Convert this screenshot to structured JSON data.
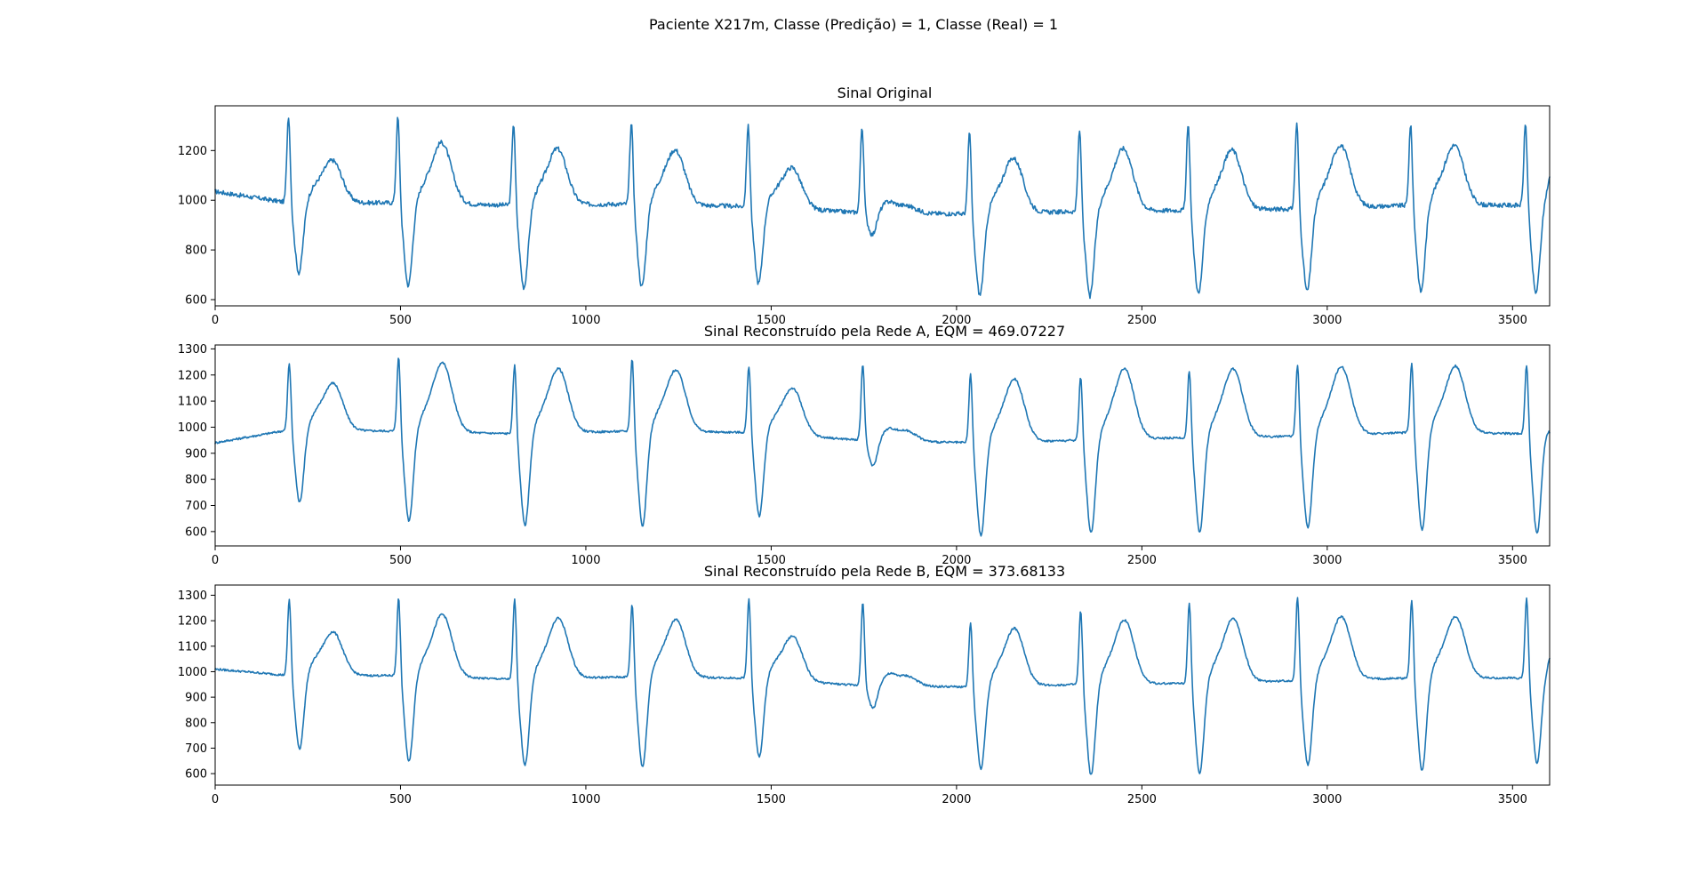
{
  "figure": {
    "suptitle": "Paciente X217m, Classe (Predição) = 1, Classe (Real) = 1"
  },
  "colors": {
    "line": "#1f77b4",
    "axes": "#000000",
    "background": "#ffffff"
  },
  "chart_data": [
    {
      "type": "line",
      "title": "Sinal Original",
      "xlabel": "",
      "ylabel": "",
      "xlim": [
        0,
        3600
      ],
      "ylim": [
        575,
        1380
      ],
      "xticks": [
        0,
        500,
        1000,
        1500,
        2000,
        2500,
        3000,
        3500
      ],
      "yticks": [
        600,
        800,
        1000,
        1200
      ],
      "grid": false,
      "series": [
        {
          "name": "",
          "beats": [
            {
              "r": 198,
              "r_peak": 1350,
              "s_min": 705,
              "t_peak": 1160,
              "baseline": 990
            },
            {
              "r": 493,
              "r_peak": 1345,
              "s_min": 655,
              "t_peak": 1235,
              "baseline": 990
            },
            {
              "r": 805,
              "r_peak": 1320,
              "s_min": 645,
              "t_peak": 1205,
              "baseline": 980
            },
            {
              "r": 1123,
              "r_peak": 1320,
              "s_min": 650,
              "t_peak": 1205,
              "baseline": 985
            },
            {
              "r": 1438,
              "r_peak": 1310,
              "s_min": 665,
              "t_peak": 1140,
              "baseline": 975
            },
            {
              "r": 1745,
              "r_peak": 1300,
              "s_min": 860,
              "t_peak": 980,
              "baseline": 950
            },
            {
              "r": 2035,
              "r_peak": 1285,
              "s_min": 615,
              "t_peak": 1165,
              "baseline": 945
            },
            {
              "r": 2332,
              "r_peak": 1295,
              "s_min": 610,
              "t_peak": 1205,
              "baseline": 955
            },
            {
              "r": 2625,
              "r_peak": 1315,
              "s_min": 620,
              "t_peak": 1200,
              "baseline": 960
            },
            {
              "r": 2918,
              "r_peak": 1320,
              "s_min": 630,
              "t_peak": 1215,
              "baseline": 965
            },
            {
              "r": 3225,
              "r_peak": 1315,
              "s_min": 630,
              "t_peak": 1220,
              "baseline": 980
            },
            {
              "r": 3535,
              "r_peak": 1320,
              "s_min": 625,
              "t_peak": 1050,
              "baseline": 980
            }
          ],
          "start_value": 1035,
          "end_value": 1045,
          "noise_amplitude": 9
        }
      ]
    },
    {
      "type": "line",
      "title": "Sinal Reconstruído pela Rede A, EQM = 469.07227",
      "xlabel": "",
      "ylabel": "",
      "xlim": [
        0,
        3600
      ],
      "ylim": [
        545,
        1315
      ],
      "xticks": [
        0,
        500,
        1000,
        1500,
        2000,
        2500,
        3000,
        3500
      ],
      "yticks": [
        600,
        700,
        800,
        900,
        1000,
        1100,
        1200,
        1300
      ],
      "grid": false,
      "series": [
        {
          "name": "",
          "beats": [
            {
              "r": 200,
              "r_peak": 1255,
              "s_min": 710,
              "t_peak": 1170,
              "baseline": 990
            },
            {
              "r": 495,
              "r_peak": 1280,
              "s_min": 640,
              "t_peak": 1250,
              "baseline": 985
            },
            {
              "r": 808,
              "r_peak": 1250,
              "s_min": 620,
              "t_peak": 1220,
              "baseline": 975
            },
            {
              "r": 1125,
              "r_peak": 1275,
              "s_min": 620,
              "t_peak": 1220,
              "baseline": 985
            },
            {
              "r": 1440,
              "r_peak": 1245,
              "s_min": 660,
              "t_peak": 1160,
              "baseline": 980
            },
            {
              "r": 1747,
              "r_peak": 1245,
              "s_min": 850,
              "t_peak": 990,
              "baseline": 950
            },
            {
              "r": 2038,
              "r_peak": 1215,
              "s_min": 580,
              "t_peak": 1180,
              "baseline": 940
            },
            {
              "r": 2335,
              "r_peak": 1205,
              "s_min": 590,
              "t_peak": 1220,
              "baseline": 950
            },
            {
              "r": 2628,
              "r_peak": 1230,
              "s_min": 595,
              "t_peak": 1220,
              "baseline": 960
            },
            {
              "r": 2920,
              "r_peak": 1250,
              "s_min": 610,
              "t_peak": 1225,
              "baseline": 965
            },
            {
              "r": 3228,
              "r_peak": 1260,
              "s_min": 605,
              "t_peak": 1235,
              "baseline": 980
            },
            {
              "r": 3538,
              "r_peak": 1250,
              "s_min": 590,
              "t_peak": 960,
              "baseline": 975
            }
          ],
          "start_value": 940,
          "end_value": 950,
          "noise_amplitude": 4
        }
      ]
    },
    {
      "type": "line",
      "title": "Sinal Reconstruído pela Rede B, EQM = 373.68133",
      "xlabel": "",
      "ylabel": "",
      "xlim": [
        0,
        3600
      ],
      "ylim": [
        555,
        1340
      ],
      "xticks": [
        0,
        500,
        1000,
        1500,
        2000,
        2500,
        3000,
        3500
      ],
      "yticks": [
        600,
        700,
        800,
        900,
        1000,
        1100,
        1200,
        1300
      ],
      "grid": false,
      "series": [
        {
          "name": "",
          "beats": [
            {
              "r": 200,
              "r_peak": 1295,
              "s_min": 695,
              "t_peak": 1155,
              "baseline": 985
            },
            {
              "r": 495,
              "r_peak": 1300,
              "s_min": 645,
              "t_peak": 1230,
              "baseline": 985
            },
            {
              "r": 808,
              "r_peak": 1295,
              "s_min": 630,
              "t_peak": 1205,
              "baseline": 970
            },
            {
              "r": 1125,
              "r_peak": 1275,
              "s_min": 625,
              "t_peak": 1205,
              "baseline": 980
            },
            {
              "r": 1440,
              "r_peak": 1295,
              "s_min": 665,
              "t_peak": 1150,
              "baseline": 975
            },
            {
              "r": 1747,
              "r_peak": 1275,
              "s_min": 855,
              "t_peak": 985,
              "baseline": 945
            },
            {
              "r": 2038,
              "r_peak": 1200,
              "s_min": 615,
              "t_peak": 1165,
              "baseline": 940
            },
            {
              "r": 2335,
              "r_peak": 1250,
              "s_min": 590,
              "t_peak": 1200,
              "baseline": 950
            },
            {
              "r": 2628,
              "r_peak": 1285,
              "s_min": 595,
              "t_peak": 1205,
              "baseline": 955
            },
            {
              "r": 2920,
              "r_peak": 1305,
              "s_min": 630,
              "t_peak": 1210,
              "baseline": 965
            },
            {
              "r": 3228,
              "r_peak": 1295,
              "s_min": 610,
              "t_peak": 1215,
              "baseline": 975
            },
            {
              "r": 3538,
              "r_peak": 1300,
              "s_min": 640,
              "t_peak": 1010,
              "baseline": 975
            }
          ],
          "start_value": 1010,
          "end_value": 1015,
          "noise_amplitude": 4
        }
      ]
    }
  ]
}
